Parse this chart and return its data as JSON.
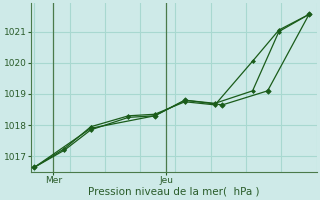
{
  "background_color": "#ceeae8",
  "grid_color": "#a8d8d0",
  "line_color": "#1a5c1a",
  "marker_color": "#1a5c1a",
  "axis_color": "#4a7a4a",
  "text_color": "#2a5c2a",
  "xlabel": "Pression niveau de la mer(  hPa )",
  "xtick_labels": [
    "Mer",
    "Jeu"
  ],
  "xtick_positions": [
    0.5,
    3.5
  ],
  "ytick_labels": [
    "1017",
    "1018",
    "1019",
    "1020",
    "1021"
  ],
  "ytick_positions": [
    1017,
    1018,
    1019,
    1020,
    1021
  ],
  "ylim": [
    1016.5,
    1021.9
  ],
  "xlim": [
    -0.1,
    7.5
  ],
  "num_vgrid": 9,
  "series1_x": [
    0.0,
    0.8,
    1.5,
    2.5,
    3.2,
    4.0,
    4.8,
    5.8,
    6.5,
    7.3
  ],
  "series1_y": [
    1016.65,
    1017.2,
    1017.85,
    1018.25,
    1018.3,
    1018.8,
    1018.7,
    1019.1,
    1021.0,
    1021.55
  ],
  "series2_x": [
    0.0,
    0.8,
    1.5,
    2.5,
    3.2,
    4.0,
    4.8,
    5.8,
    6.5,
    7.3
  ],
  "series2_y": [
    1016.65,
    1017.25,
    1017.95,
    1018.3,
    1018.35,
    1018.75,
    1018.65,
    1020.05,
    1021.05,
    1021.55
  ],
  "series3_x": [
    0.0,
    1.5,
    3.2,
    4.0,
    5.0,
    6.2,
    7.3
  ],
  "series3_y": [
    1016.65,
    1017.9,
    1018.3,
    1018.8,
    1018.65,
    1019.1,
    1021.55
  ],
  "vline_x": [
    0.5,
    3.5
  ],
  "tick_fontsize": 6.5,
  "label_fontsize": 7.5,
  "figsize": [
    3.2,
    2.0
  ],
  "dpi": 100
}
